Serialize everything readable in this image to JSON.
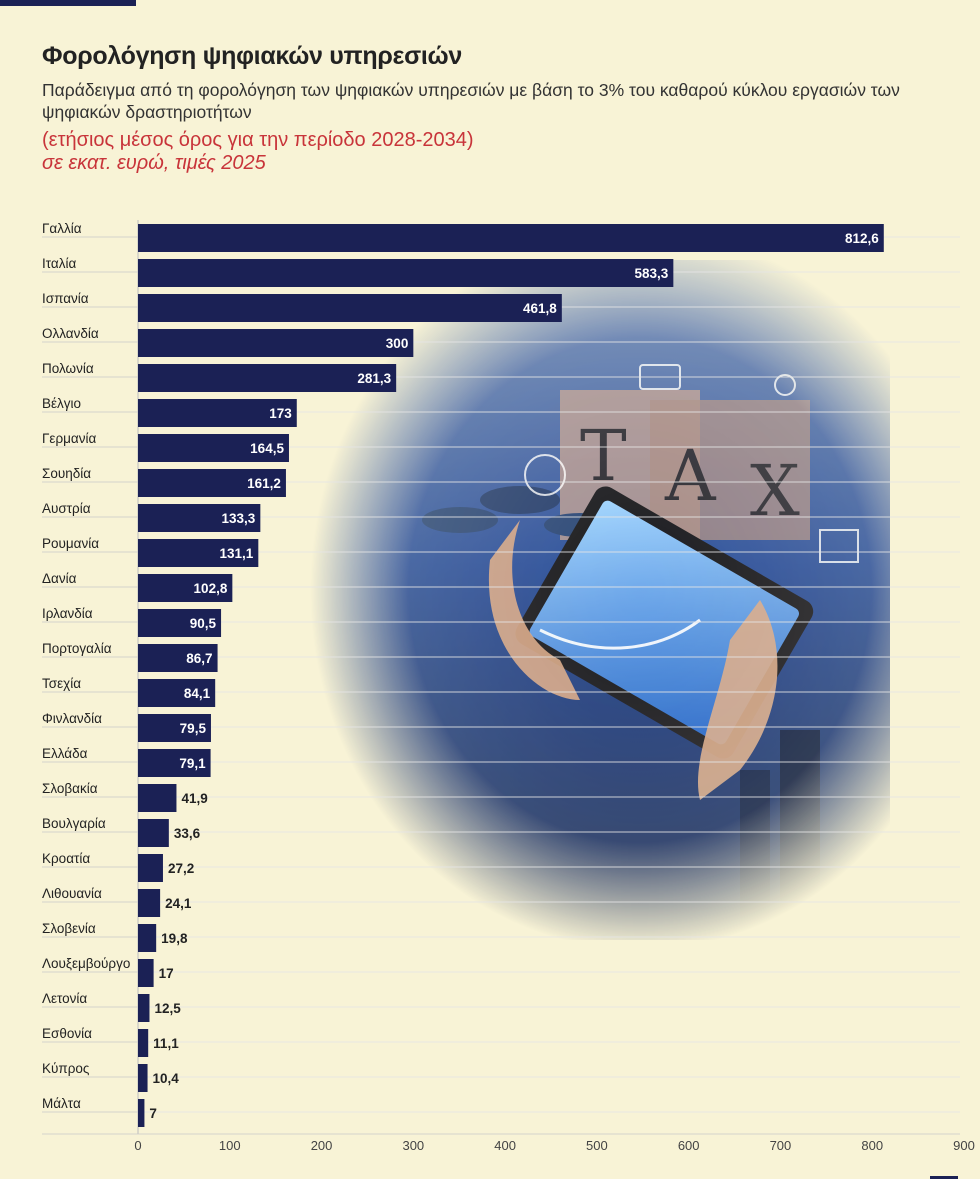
{
  "header": {
    "title": "Φορολόγηση ψηφιακών υπηρεσιών",
    "subtitle": "Παράδειγμα από τη φορολόγηση των ψηφιακών υπηρεσιών με βάση το 3% του καθαρού κύκλου εργασιών των ψηφιακών δραστηριοτήτων",
    "note_period": "(ετήσιος μέσος όρος για την περίοδο 2028-2034)",
    "note_units": "σε εκατ. ευρώ, τιμές 2025"
  },
  "colors": {
    "bar": "#1b2155",
    "background": "#f8f3d6",
    "accent_red": "#c8343a"
  },
  "background_image": "tax-digital-tablet-photo",
  "chart_data": {
    "type": "bar",
    "orientation": "horizontal",
    "categories": [
      "Γαλλία",
      "Ιταλία",
      "Ισπανία",
      "Ολλανδία",
      "Πολωνία",
      "Βέλγιο",
      "Γερμανία",
      "Σουηδία",
      "Αυστρία",
      "Ρουμανία",
      "Δανία",
      "Ιρλανδία",
      "Πορτογαλία",
      "Τσεχία",
      "Φινλανδία",
      "Ελλάδα",
      "Σλοβακία",
      "Βουλγαρία",
      "Κροατία",
      "Λιθουανία",
      "Σλοβενία",
      "Λουξεμβούργο",
      "Λετονία",
      "Εσθονία",
      "Κύπρος",
      "Μάλτα"
    ],
    "values": [
      812.6,
      583.3,
      461.8,
      300,
      281.3,
      173,
      164.5,
      161.2,
      133.3,
      131.1,
      102.8,
      90.5,
      86.7,
      84.1,
      79.5,
      79.1,
      41.9,
      33.6,
      27.2,
      24.1,
      19.8,
      17,
      12.5,
      11.1,
      10.4,
      7
    ],
    "value_labels": [
      "812,6",
      "583,3",
      "461,8",
      "300",
      "281,3",
      "173",
      "164,5",
      "161,2",
      "133,3",
      "131,1",
      "102,8",
      "90,5",
      "86,7",
      "84,1",
      "79,5",
      "79,1",
      "41,9",
      "33,6",
      "27,2",
      "24,1",
      "19,8",
      "17",
      "12,5",
      "11,1",
      "10,4",
      "7"
    ],
    "xlim": [
      0,
      900
    ],
    "xticks": [
      0,
      100,
      200,
      300,
      400,
      500,
      600,
      700,
      800,
      900
    ],
    "grid": true
  }
}
